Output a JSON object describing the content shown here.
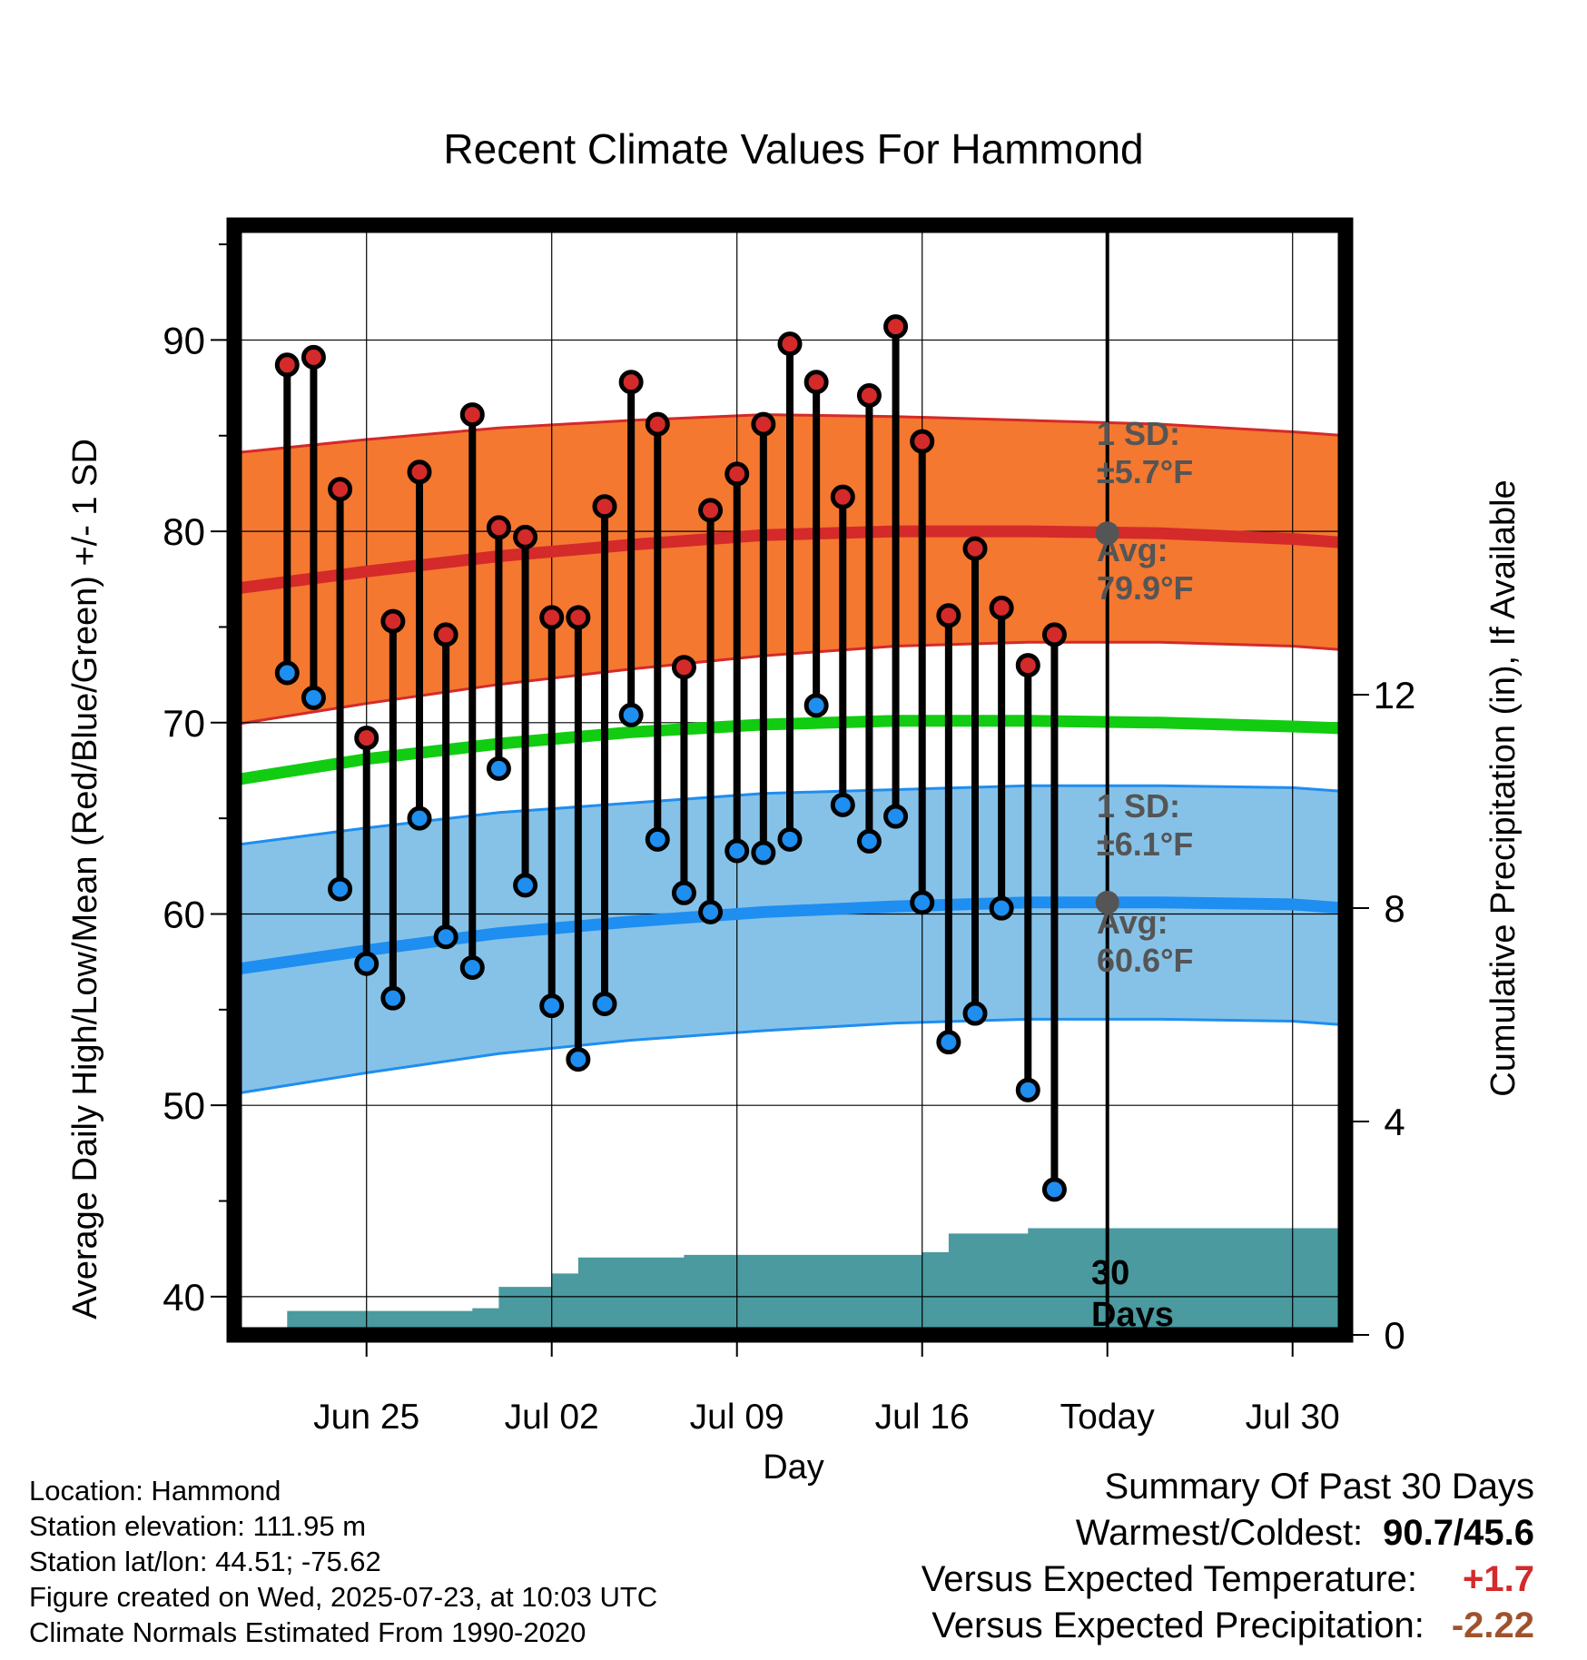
{
  "chart_data": {
    "type": "line",
    "title": "Recent Climate Values For Hammond",
    "xlabel": "Day",
    "ylabel": "Average Daily High/Low/Mean (Red/Blue/Green) +/- 1 SD",
    "y2label": "Cumulative Precipitation (in), If Available",
    "ylim": [
      38,
      96
    ],
    "y2lim": [
      0,
      20.8
    ],
    "y_ticks": [
      40,
      50,
      60,
      70,
      80,
      90
    ],
    "y2_ticks": [
      0,
      4,
      8,
      12
    ],
    "xlim": [
      "2025-06-20",
      "2025-08-01"
    ],
    "x_ticks": [
      {
        "date": "2025-06-25",
        "label": "Jun 25"
      },
      {
        "date": "2025-07-02",
        "label": "Jul 02"
      },
      {
        "date": "2025-07-09",
        "label": "Jul 09"
      },
      {
        "date": "2025-07-16",
        "label": "Jul 16"
      },
      {
        "date": "2025-07-23",
        "label": "Today"
      },
      {
        "date": "2025-07-30",
        "label": "Jul 30"
      }
    ],
    "today": "2025-07-23",
    "grid": true,
    "normals_dates": [
      "2025-06-20",
      "2025-06-25",
      "2025-06-30",
      "2025-07-05",
      "2025-07-10",
      "2025-07-15",
      "2025-07-20",
      "2025-07-25",
      "2025-07-30",
      "2025-08-01"
    ],
    "normal_high": [
      77.0,
      77.9,
      78.7,
      79.3,
      79.8,
      80.0,
      80.0,
      79.9,
      79.6,
      79.4
    ],
    "normal_high_sd": [
      7.1,
      6.9,
      6.7,
      6.5,
      6.3,
      6.0,
      5.8,
      5.7,
      5.6,
      5.6
    ],
    "normal_mean": [
      67.0,
      68.1,
      68.9,
      69.5,
      69.9,
      70.1,
      70.1,
      70.0,
      69.8,
      69.7
    ],
    "normal_low": [
      57.1,
      58.1,
      59.0,
      59.6,
      60.1,
      60.4,
      60.6,
      60.6,
      60.5,
      60.3
    ],
    "normal_low_sd": [
      6.5,
      6.4,
      6.3,
      6.2,
      6.2,
      6.1,
      6.1,
      6.1,
      6.1,
      6.1
    ],
    "daily": {
      "dates": [
        "2025-06-22",
        "2025-06-23",
        "2025-06-24",
        "2025-06-25",
        "2025-06-26",
        "2025-06-27",
        "2025-06-28",
        "2025-06-29",
        "2025-06-30",
        "2025-07-01",
        "2025-07-02",
        "2025-07-03",
        "2025-07-04",
        "2025-07-05",
        "2025-07-06",
        "2025-07-07",
        "2025-07-08",
        "2025-07-09",
        "2025-07-10",
        "2025-07-11",
        "2025-07-12",
        "2025-07-13",
        "2025-07-14",
        "2025-07-15",
        "2025-07-16",
        "2025-07-17",
        "2025-07-18",
        "2025-07-19",
        "2025-07-20",
        "2025-07-21",
        "2025-07-22"
      ],
      "high": [
        88.7,
        89.1,
        82.2,
        69.2,
        75.3,
        83.1,
        74.6,
        86.1,
        80.2,
        79.7,
        75.5,
        75.5,
        81.3,
        87.8,
        85.6,
        72.9,
        81.1,
        83.0,
        85.6,
        89.8,
        87.8,
        81.8,
        87.1,
        90.7,
        84.7,
        75.6,
        79.1,
        76.0,
        73.0,
        74.6,
        null
      ],
      "low": [
        72.6,
        71.3,
        61.3,
        57.4,
        55.6,
        65.0,
        58.8,
        57.2,
        67.6,
        61.5,
        55.2,
        52.4,
        55.3,
        70.4,
        63.9,
        61.1,
        60.1,
        63.3,
        63.2,
        63.9,
        70.9,
        65.7,
        63.8,
        65.1,
        60.6,
        53.3,
        54.8,
        60.3,
        50.8,
        45.6,
        null
      ]
    },
    "precip": {
      "dates": [
        "2025-06-21",
        "2025-06-22",
        "2025-06-25",
        "2025-06-28",
        "2025-06-29",
        "2025-06-30",
        "2025-07-01",
        "2025-07-02",
        "2025-07-03",
        "2025-07-05",
        "2025-07-07",
        "2025-07-10",
        "2025-07-15",
        "2025-07-16",
        "2025-07-17",
        "2025-07-19",
        "2025-07-20",
        "2025-08-01"
      ],
      "values": [
        0.0,
        0.45,
        0.45,
        0.45,
        0.5,
        0.9,
        0.9,
        1.15,
        1.45,
        1.45,
        1.5,
        1.5,
        1.5,
        1.55,
        1.9,
        1.9,
        2.0,
        2.0
      ]
    },
    "annotations": {
      "high_sd_label": "1 SD:",
      "high_sd_value": "±5.7°F",
      "high_avg_label": "Avg:",
      "high_avg_value": "79.9°F",
      "high_avg_y": 79.9,
      "low_sd_label": "1 SD:",
      "low_sd_value": "±6.1°F",
      "low_avg_label": "Avg:",
      "low_avg_value": "60.6°F",
      "low_avg_y": 60.6,
      "days_label_1": "30",
      "days_label_2": "Days"
    },
    "colors": {
      "high_band": "#f47830",
      "high_line": "#d42a2a",
      "mean_line": "#11cc11",
      "low_band": "#86c2e8",
      "low_line": "#1e8ef0",
      "precip": "#4a9aa0",
      "high_dot": "#d42a2a",
      "low_dot": "#1e8ef0",
      "marker": "#555555"
    }
  },
  "info": {
    "location": "Location: Hammond",
    "elevation": "Station elevation: 111.95 m",
    "latlon": "Station lat/lon: 44.51; -75.62",
    "created": "Figure created on Wed, 2025-07-23, at 10:03 UTC",
    "normals": "Climate Normals Estimated From 1990-2020"
  },
  "summary": {
    "heading": "Summary Of Past 30 Days",
    "warm_cold_label": "Warmest/Coldest:",
    "warm_cold_value": "90.7/45.6",
    "temp_label": "Versus Expected Temperature:",
    "temp_value": "+1.7",
    "temp_color": "#d42a2a",
    "precip_label": "Versus Expected Precipitation:",
    "precip_value": "-2.22",
    "precip_color": "#a0522d"
  }
}
